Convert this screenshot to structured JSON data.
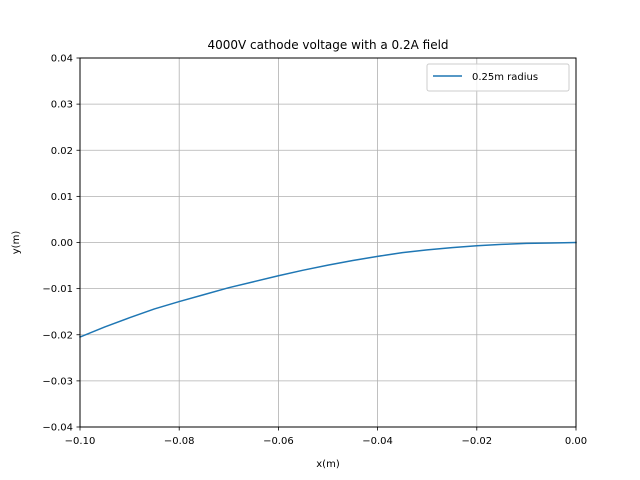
{
  "chart_data": {
    "type": "line",
    "title": "4000V cathode voltage with a 0.2A field",
    "xlabel": "x(m)",
    "ylabel": "y(m)",
    "xlim": [
      -0.1,
      0.0
    ],
    "ylim": [
      -0.04,
      0.04
    ],
    "xticks": [
      -0.1,
      -0.08,
      -0.06,
      -0.04,
      -0.02,
      0.0
    ],
    "xtick_labels": [
      "−0.10",
      "−0.08",
      "−0.06",
      "−0.04",
      "−0.02",
      "0.00"
    ],
    "yticks": [
      -0.04,
      -0.03,
      -0.02,
      -0.01,
      0.0,
      0.01,
      0.02,
      0.03,
      0.04
    ],
    "ytick_labels": [
      "−0.04",
      "−0.03",
      "−0.02",
      "−0.01",
      "0.00",
      "0.01",
      "0.02",
      "0.03",
      "0.04"
    ],
    "grid": true,
    "legend_position": "top-right",
    "series": [
      {
        "name": "0.25m radius",
        "color": "#1f77b4",
        "x": [
          -0.1,
          -0.095,
          -0.09,
          -0.085,
          -0.08,
          -0.075,
          -0.07,
          -0.065,
          -0.06,
          -0.055,
          -0.05,
          -0.045,
          -0.04,
          -0.035,
          -0.03,
          -0.025,
          -0.02,
          -0.015,
          -0.01,
          -0.005,
          0.0
        ],
        "y": [
          -0.0205,
          -0.0183,
          -0.0163,
          -0.0144,
          -0.0128,
          -0.0113,
          -0.0098,
          -0.0085,
          -0.0072,
          -0.006,
          -0.0049,
          -0.0039,
          -0.003,
          -0.0022,
          -0.0016,
          -0.0011,
          -0.0007,
          -0.0004,
          -0.0002,
          -0.0001,
          0.0
        ]
      }
    ]
  }
}
